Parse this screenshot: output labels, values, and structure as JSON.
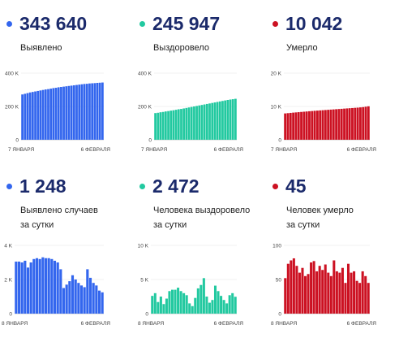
{
  "panels": [
    {
      "value": "343 640",
      "label": "Выявлено",
      "label2": "",
      "color": "#3366ee"
    },
    {
      "value": "245 947",
      "label": "Выздоровело",
      "label2": "",
      "color": "#22c9a0"
    },
    {
      "value": "10 042",
      "label": "Умерло",
      "label2": "",
      "color": "#cc1122"
    },
    {
      "value": "1 248",
      "label": "Выявлено случаев",
      "label2": "за сутки",
      "color": "#3366ee"
    },
    {
      "value": "2 472",
      "label": "Человека выздоровело",
      "label2": "за сутки",
      "color": "#22c9a0"
    },
    {
      "value": "45",
      "label": "Человек умерло",
      "label2": "за сутки",
      "color": "#cc1122"
    }
  ],
  "chart_data": [
    {
      "type": "bar",
      "title": "Выявлено",
      "color": "#3366ee",
      "yticks": [
        "0",
        "200 K",
        "400 K"
      ],
      "ytick_values": [
        0,
        200000,
        400000
      ],
      "ylim": [
        0,
        400000
      ],
      "x_first": "7 ЯНВАРЯ",
      "x_last": "6 ФЕВРАЛЯ",
      "values": [
        272000,
        276000,
        280000,
        284000,
        287000,
        290000,
        293000,
        296000,
        299000,
        302000,
        304000,
        307000,
        310000,
        312000,
        315000,
        317000,
        319000,
        321000,
        323000,
        325000,
        327000,
        329000,
        331000,
        333000,
        335000,
        336000,
        338000,
        339000,
        340000,
        341500,
        342500,
        343640
      ]
    },
    {
      "type": "bar",
      "title": "Выздоровело",
      "color": "#22c9a0",
      "yticks": [
        "0",
        "200 K",
        "400 K"
      ],
      "ytick_values": [
        0,
        200000,
        400000
      ],
      "ylim": [
        0,
        400000
      ],
      "x_first": "7 ЯНВАРЯ",
      "x_last": "6 ФЕВРАЛЯ",
      "values": [
        160000,
        162000,
        165000,
        167000,
        170000,
        172000,
        175000,
        177000,
        180000,
        183000,
        185000,
        188000,
        191000,
        194000,
        197000,
        200000,
        203000,
        206000,
        209000,
        212000,
        215000,
        218000,
        221000,
        224000,
        227000,
        230000,
        233000,
        236000,
        239000,
        241500,
        243500,
        245947
      ]
    },
    {
      "type": "bar",
      "title": "Умерло",
      "color": "#cc1122",
      "yticks": [
        "0",
        "10 K",
        "20 K"
      ],
      "ytick_values": [
        0,
        10000,
        20000
      ],
      "ylim": [
        0,
        20000
      ],
      "x_first": "7 ЯНВАРЯ",
      "x_last": "6 ФЕВРАЛЯ",
      "values": [
        7900,
        7980,
        8060,
        8140,
        8210,
        8280,
        8350,
        8420,
        8490,
        8560,
        8620,
        8690,
        8750,
        8810,
        8870,
        8930,
        8990,
        9050,
        9110,
        9170,
        9230,
        9290,
        9350,
        9410,
        9470,
        9530,
        9590,
        9650,
        9720,
        9800,
        9920,
        10042
      ]
    },
    {
      "type": "bar",
      "title": "Выявлено случаев за сутки",
      "color": "#3366ee",
      "yticks": [
        "0",
        "2 K",
        "4 K"
      ],
      "ytick_values": [
        0,
        2000,
        4000
      ],
      "ylim": [
        0,
        4000
      ],
      "x_first": "8 ЯНВАРЯ",
      "x_last": "6 ФЕВРАЛЯ",
      "values": [
        3050,
        3050,
        3000,
        3100,
        2700,
        3000,
        3200,
        3250,
        3200,
        3300,
        3250,
        3250,
        3200,
        3100,
        3000,
        2600,
        1500,
        1700,
        1900,
        2250,
        2000,
        1800,
        1650,
        1550,
        2600,
        2100,
        1800,
        1650,
        1350,
        1248
      ]
    },
    {
      "type": "bar",
      "title": "Человека выздоровело за сутки",
      "color": "#22c9a0",
      "yticks": [
        "0",
        "5 K",
        "10 K"
      ],
      "ytick_values": [
        0,
        5000,
        10000
      ],
      "ylim": [
        0,
        10000
      ],
      "x_first": "8 ЯНВАРЯ",
      "x_last": "6 ФЕВРАЛЯ",
      "values": [
        2600,
        3000,
        1700,
        2500,
        1400,
        2200,
        3300,
        3500,
        3500,
        3800,
        3300,
        3000,
        2700,
        1500,
        1100,
        2300,
        3700,
        4200,
        5200,
        2500,
        1600,
        2000,
        4100,
        3300,
        2600,
        2000,
        1500,
        2700,
        3000,
        2472
      ]
    },
    {
      "type": "bar",
      "title": "Человек умерло за сутки",
      "color": "#cc1122",
      "yticks": [
        "0",
        "50",
        "100"
      ],
      "ytick_values": [
        0,
        50,
        100
      ],
      "ylim": [
        0,
        100
      ],
      "x_first": "8 ЯНВАРЯ",
      "x_last": "6 ФЕВРАЛЯ",
      "values": [
        52,
        73,
        78,
        81,
        70,
        60,
        67,
        55,
        58,
        75,
        77,
        62,
        70,
        64,
        72,
        60,
        55,
        78,
        62,
        60,
        67,
        45,
        73,
        60,
        62,
        48,
        45,
        62,
        55,
        45
      ]
    }
  ]
}
